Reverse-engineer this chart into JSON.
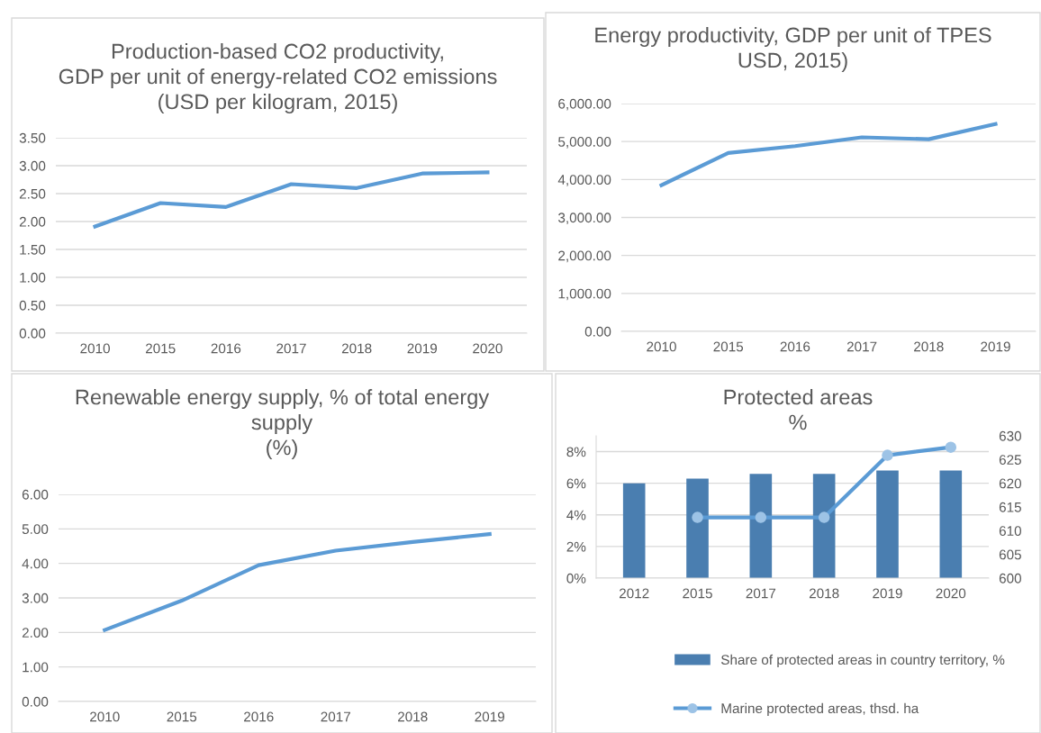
{
  "chart_data": [
    {
      "type": "line",
      "title": "Production-based CO2 productivity,\nGDP per unit of energy-related CO2 emissions\n(USD per kilogram, 2015)",
      "categories": [
        "2010",
        "2015",
        "2016",
        "2017",
        "2018",
        "2019",
        "2020"
      ],
      "series": [
        {
          "color": "#5b9bd5",
          "values": [
            1.91,
            2.33,
            2.26,
            2.67,
            2.6,
            2.86,
            2.88
          ]
        }
      ],
      "ylim": [
        0,
        3.5
      ],
      "yticks": [
        {
          "value": 0,
          "label": "0.00"
        },
        {
          "value": 0.5,
          "label": "0.50"
        },
        {
          "value": 1,
          "label": "1.00"
        },
        {
          "value": 1.5,
          "label": "1.50"
        },
        {
          "value": 2,
          "label": "2.00"
        },
        {
          "value": 2.5,
          "label": "2.50"
        },
        {
          "value": 3,
          "label": "3.00"
        },
        {
          "value": 3.5,
          "label": "3.50"
        }
      ],
      "grid": "y",
      "legend": false
    },
    {
      "type": "line",
      "title": "Energy productivity, GDP per unit of TPES\nUSD, 2015)",
      "categories": [
        "2010",
        "2015",
        "2016",
        "2017",
        "2018",
        "2019"
      ],
      "series": [
        {
          "color": "#5b9bd5",
          "values": [
            3850,
            4700,
            4880,
            5110,
            5060,
            5460
          ]
        }
      ],
      "ylim": [
        0,
        6000
      ],
      "yticks": [
        {
          "value": 0,
          "label": "0.00"
        },
        {
          "value": 1000,
          "label": "1,000.00"
        },
        {
          "value": 2000,
          "label": "2,000.00"
        },
        {
          "value": 3000,
          "label": "3,000.00"
        },
        {
          "value": 4000,
          "label": "4,000.00"
        },
        {
          "value": 5000,
          "label": "5,000.00"
        },
        {
          "value": 6000,
          "label": "6,000.00"
        }
      ],
      "grid": "y",
      "legend": false
    },
    {
      "type": "line",
      "title": "Renewable energy supply, % of total energy\nsupply\n(%)",
      "categories": [
        "2010",
        "2015",
        "2016",
        "2017",
        "2018",
        "2019"
      ],
      "series": [
        {
          "color": "#5b9bd5",
          "values": [
            2.07,
            2.92,
            3.95,
            4.37,
            4.62,
            4.85
          ]
        }
      ],
      "ylim": [
        0,
        6
      ],
      "yticks": [
        {
          "value": 0,
          "label": "0.00"
        },
        {
          "value": 1,
          "label": "1.00"
        },
        {
          "value": 2,
          "label": "2.00"
        },
        {
          "value": 3,
          "label": "3.00"
        },
        {
          "value": 4,
          "label": "4.00"
        },
        {
          "value": 5,
          "label": "5.00"
        },
        {
          "value": 6,
          "label": "6.00"
        }
      ],
      "grid": "y",
      "legend": false
    },
    {
      "type": "bar",
      "title": "Protected areas\n%",
      "categories": [
        "2012",
        "2015",
        "2017",
        "2018",
        "2019",
        "2020"
      ],
      "series": [
        {
          "name": "Share of protected areas in country territory, %",
          "color": "#4a7eb0",
          "values": [
            6.0,
            6.3,
            6.6,
            6.6,
            6.8,
            6.8
          ]
        },
        {
          "name": "Marine protected areas, thsd. ha",
          "type": "line",
          "axis": "y2",
          "color": "#5b9bd5",
          "marker": "circle",
          "values": [
            null,
            612.8,
            612.8,
            612.8,
            625.9,
            627.6
          ]
        }
      ],
      "ylim": [
        0,
        9
      ],
      "yticks": [
        {
          "value": 0,
          "label": "0%"
        },
        {
          "value": 2,
          "label": "2%"
        },
        {
          "value": 4,
          "label": "4%"
        },
        {
          "value": 6,
          "label": "6%"
        },
        {
          "value": 8,
          "label": "8%"
        }
      ],
      "y2lim": [
        600,
        630
      ],
      "y2ticks": [
        600,
        605,
        610,
        615,
        620,
        625,
        630
      ],
      "grid": "y",
      "legend": "bottom"
    }
  ]
}
